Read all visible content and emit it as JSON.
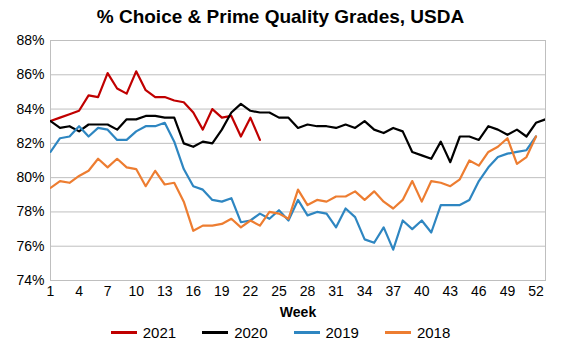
{
  "chart_data": {
    "type": "line",
    "title": "% Choice & Prime Quality Grades, USDA",
    "x_label": "Week",
    "x": [
      1,
      2,
      3,
      4,
      5,
      6,
      7,
      8,
      9,
      10,
      11,
      12,
      13,
      14,
      15,
      16,
      17,
      18,
      19,
      20,
      21,
      22,
      23,
      24,
      25,
      26,
      27,
      28,
      29,
      30,
      31,
      32,
      33,
      34,
      35,
      36,
      37,
      38,
      39,
      40,
      41,
      42,
      43,
      44,
      45,
      46,
      47,
      48,
      49,
      50,
      51,
      52,
      53
    ],
    "series": [
      {
        "name": "2021",
        "color": "#c00000",
        "values": [
          83.3,
          83.5,
          83.7,
          83.9,
          84.8,
          84.7,
          86.1,
          85.2,
          84.9,
          86.2,
          85.1,
          84.7,
          84.7,
          84.5,
          84.4,
          83.8,
          82.8,
          84.0,
          83.5,
          83.6,
          82.4,
          83.5,
          82.2,
          null,
          null,
          null,
          null,
          null,
          null,
          null,
          null,
          null,
          null,
          null,
          null,
          null,
          null,
          null,
          null,
          null,
          null,
          null,
          null,
          null,
          null,
          null,
          null,
          null,
          null,
          null,
          null,
          null,
          null
        ]
      },
      {
        "name": "2020",
        "color": "#000000",
        "values": [
          83.3,
          82.9,
          83.0,
          82.7,
          83.1,
          83.1,
          83.1,
          82.8,
          83.4,
          83.4,
          83.6,
          83.6,
          83.5,
          83.5,
          82.0,
          81.8,
          82.1,
          82.0,
          82.8,
          83.8,
          84.3,
          83.9,
          83.8,
          83.8,
          83.5,
          83.5,
          82.9,
          83.1,
          83.0,
          83.0,
          82.9,
          83.1,
          82.9,
          83.3,
          82.8,
          82.6,
          82.9,
          82.7,
          81.5,
          81.3,
          81.1,
          82.1,
          80.9,
          82.4,
          82.4,
          82.2,
          83.0,
          82.8,
          82.5,
          82.8,
          82.4,
          83.2,
          83.4
        ]
      },
      {
        "name": "2019",
        "color": "#2e86c1",
        "values": [
          81.5,
          82.3,
          82.4,
          83.0,
          82.4,
          82.9,
          82.8,
          82.2,
          82.2,
          82.7,
          83.0,
          83.0,
          83.2,
          82.1,
          80.5,
          79.5,
          79.3,
          78.7,
          78.6,
          78.8,
          77.4,
          77.5,
          77.9,
          77.6,
          78.1,
          77.5,
          78.7,
          77.8,
          78.0,
          77.9,
          77.1,
          78.2,
          77.7,
          76.4,
          76.2,
          77.1,
          75.8,
          77.5,
          77.0,
          77.5,
          76.8,
          78.4,
          78.4,
          78.4,
          78.7,
          79.8,
          80.6,
          81.2,
          81.4,
          81.5,
          81.6,
          82.4,
          null
        ]
      },
      {
        "name": "2018",
        "color": "#ed7d31",
        "values": [
          79.4,
          79.8,
          79.7,
          80.1,
          80.4,
          81.1,
          80.6,
          81.1,
          80.6,
          80.5,
          79.5,
          80.4,
          79.6,
          79.7,
          78.6,
          76.9,
          77.2,
          77.2,
          77.3,
          77.6,
          77.1,
          77.5,
          77.2,
          78.0,
          77.9,
          77.6,
          79.3,
          78.4,
          78.7,
          78.6,
          78.9,
          78.9,
          79.2,
          78.7,
          79.2,
          78.6,
          78.2,
          78.7,
          79.8,
          78.6,
          79.8,
          79.7,
          79.5,
          79.9,
          81.0,
          80.7,
          81.5,
          81.8,
          82.3,
          80.8,
          81.2,
          82.4,
          null
        ]
      }
    ],
    "xlim": [
      1,
      53
    ],
    "xticks": [
      1,
      4,
      7,
      10,
      13,
      16,
      19,
      22,
      25,
      28,
      31,
      34,
      37,
      40,
      43,
      46,
      49,
      52
    ],
    "ylim": [
      74,
      88
    ],
    "yticks": [
      {
        "value": 74,
        "label": "74%"
      },
      {
        "value": 76,
        "label": "76%"
      },
      {
        "value": 78,
        "label": "78%"
      },
      {
        "value": 80,
        "label": "80%"
      },
      {
        "value": 82,
        "label": "82%"
      },
      {
        "value": 84,
        "label": "84%"
      },
      {
        "value": 86,
        "label": "86%"
      },
      {
        "value": 88,
        "label": "88%"
      }
    ],
    "grid": true,
    "legend": "bottom"
  }
}
